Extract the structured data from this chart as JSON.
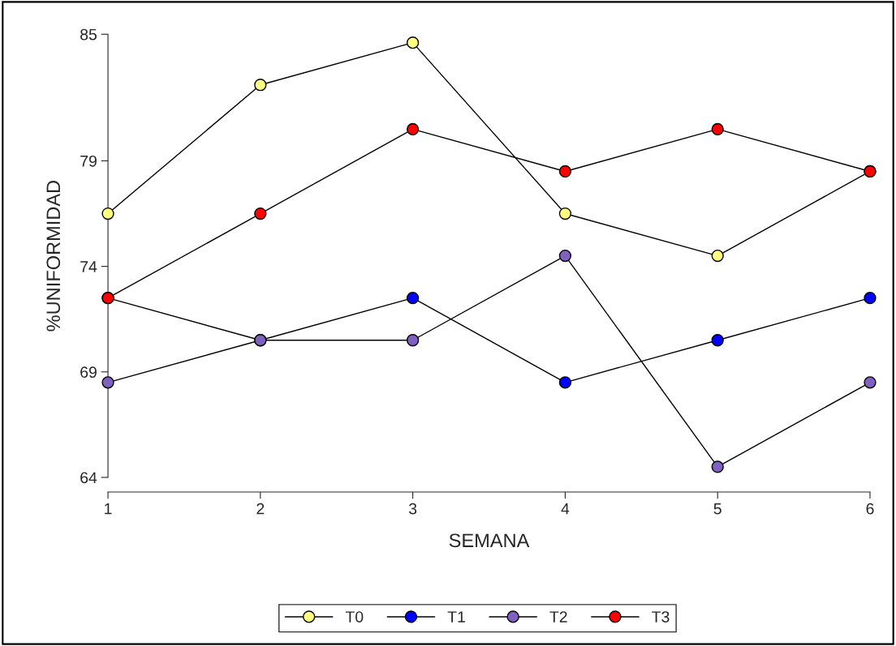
{
  "chart_data": {
    "type": "line",
    "xlabel": "SEMANA",
    "ylabel": "%UNIFORMIDAD",
    "x": [
      1,
      2,
      3,
      4,
      5,
      6
    ],
    "series": [
      {
        "name": "T0",
        "color": "#ffff80",
        "values": [
          76.5,
          82.6,
          84.6,
          76.5,
          74.5,
          78.5
        ]
      },
      {
        "name": "T1",
        "color": "#0000ff",
        "values": [
          72.5,
          70.5,
          72.5,
          68.5,
          70.5,
          72.5
        ]
      },
      {
        "name": "T2",
        "color": "#8060c0",
        "values": [
          68.5,
          70.5,
          70.5,
          74.5,
          64.5,
          68.5
        ]
      },
      {
        "name": "T3",
        "color": "#ff0000",
        "values": [
          72.5,
          76.5,
          80.5,
          78.5,
          80.5,
          78.5
        ]
      }
    ],
    "xlim": [
      1,
      6
    ],
    "xticks": [
      1,
      2,
      3,
      4,
      5,
      6
    ],
    "ylim": [
      64,
      85
    ],
    "yticks": [
      64,
      69,
      74,
      79,
      85
    ],
    "marker": "circle",
    "line_style": "solid",
    "legend": "bottom",
    "grid": false
  }
}
